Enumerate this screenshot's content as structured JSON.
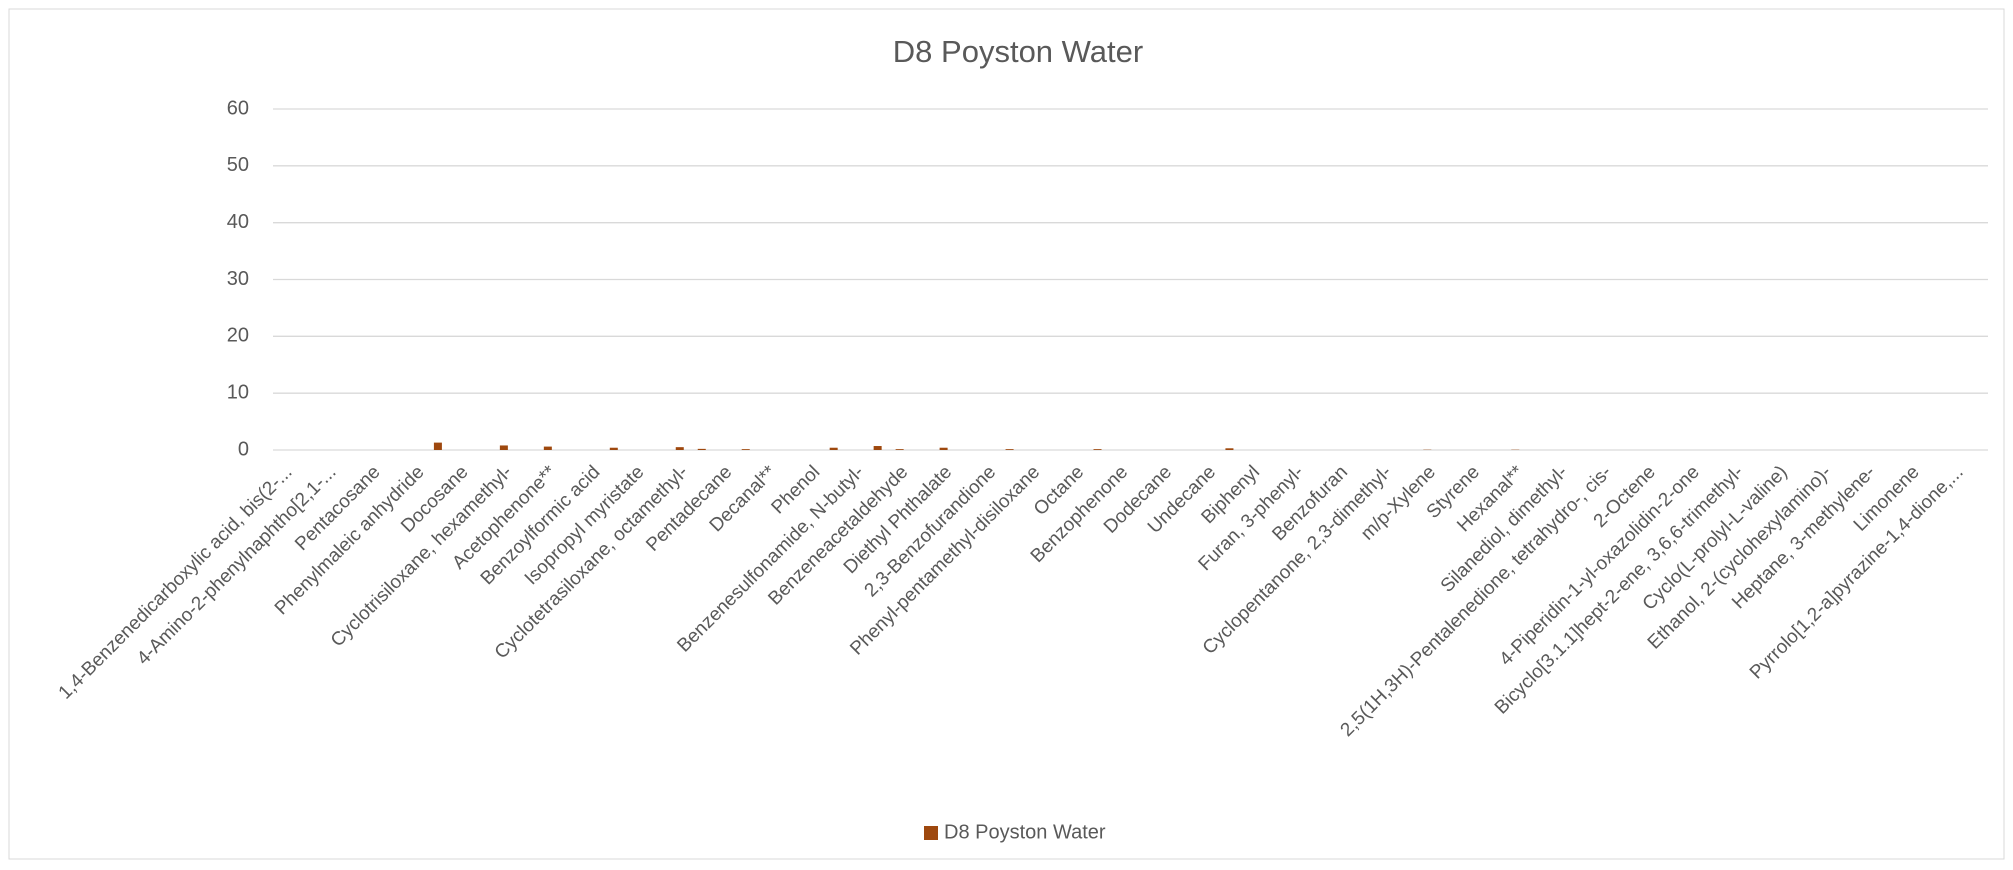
{
  "chart_data": {
    "type": "bar",
    "title": "D8 Poyston Water",
    "categories": [
      "1,4-Benzenedicarboxylic acid, bis(2-...",
      null,
      "4-Amino-2-phenylnaphtho[2,1-...",
      null,
      "Pentacosane",
      null,
      "Phenylmaleic anhydride",
      null,
      "Docosane",
      null,
      "Cyclotrisiloxane, hexamethyl-",
      null,
      "Acetophenone**",
      null,
      "Benzoylformic acid",
      null,
      "Isopropyl myristate",
      null,
      "Cyclotetrasiloxane, octamethyl-",
      null,
      "Pentadecane",
      null,
      "Decanal**",
      null,
      "Phenol",
      null,
      "Benzenesulfonamide, N-butyl-",
      null,
      "Benzeneacetaldehyde",
      null,
      "Diethyl Phthalate",
      null,
      "2,3-Benzofurandione",
      null,
      "Phenyl-pentamethyl-disiloxane",
      null,
      "Octane",
      null,
      "Benzophenone",
      null,
      "Dodecane",
      null,
      "Undecane",
      null,
      "Biphenyl",
      null,
      "Furan, 3-phenyl-",
      null,
      "Benzofuran",
      null,
      "Cyclopentanone, 2,3-dimethyl-",
      null,
      "m/p-Xylene",
      null,
      "Styrene",
      null,
      "Hexanal**",
      null,
      "Silanediol, dimethyl-",
      null,
      "2,5(1H,3H)-Pentalenedione, tetrahydro-, cis-",
      null,
      "2-Octene",
      null,
      "4-Piperidin-1-yl-oxazolidin-2-one",
      null,
      "Bicyclo[3.1.1]hept-2-ene, 3,6,6-trimethyl-",
      null,
      "Cyclo(L-prolyl-L-valine)",
      null,
      "Ethanol, 2-(cyclohexylamino)-",
      null,
      "Heptane, 3-methylene-",
      null,
      "Limonene",
      null,
      "Pyrrolo[1,2-a]pyrazine-1,4-dione,...",
      null
    ],
    "series": [
      {
        "name": "D8 Poyston Water",
        "color": "#9e480e",
        "values": [
          0,
          0,
          0,
          0,
          0,
          0,
          0,
          1.3,
          0,
          0,
          0.8,
          0,
          0.6,
          0,
          0,
          0.4,
          0,
          0,
          0.5,
          0.2,
          0,
          0.15,
          0,
          0,
          0,
          0.4,
          0,
          0.7,
          0.15,
          0,
          0.4,
          0,
          0,
          0.15,
          0,
          0,
          0,
          0.15,
          0,
          0,
          0,
          0,
          0,
          0.3,
          0,
          0,
          0,
          0,
          0,
          0,
          0,
          0,
          0.05,
          0,
          0,
          0,
          0.05,
          0,
          0,
          0,
          0,
          0,
          0,
          0,
          0,
          0,
          0,
          0,
          0,
          0,
          0,
          0,
          0,
          0,
          0,
          0,
          0,
          0
        ]
      }
    ],
    "ylim": [
      0,
      60
    ],
    "yticks": [
      0,
      10,
      20,
      30,
      40,
      50,
      60
    ],
    "grid": true,
    "legend": "bottom"
  }
}
